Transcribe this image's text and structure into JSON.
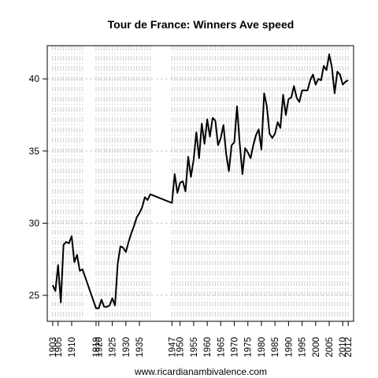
{
  "chart_data": {
    "type": "line",
    "title": "Tour de France: Winners Ave speed",
    "xlabel": "",
    "ylabel": "",
    "footer": "www.ricardianambivalence.com",
    "xlim": [
      1901,
      2014
    ],
    "ylim": [
      23.2,
      42.3
    ],
    "y_ticks": [
      25,
      30,
      35,
      40
    ],
    "x_ticks": [
      1903,
      1905,
      1910,
      1919,
      1920,
      1925,
      1930,
      1935,
      1947,
      1950,
      1955,
      1960,
      1965,
      1970,
      1975,
      1980,
      1985,
      1990,
      1995,
      2000,
      2005,
      2010,
      2012
    ],
    "grid": true,
    "legend": "none",
    "line_color": "#000000",
    "grid_color": "#cccccc",
    "x": [
      1903,
      1904,
      1905,
      1906,
      1907,
      1908,
      1909,
      1910,
      1911,
      1912,
      1913,
      1914,
      1919,
      1920,
      1921,
      1922,
      1923,
      1924,
      1925,
      1926,
      1927,
      1928,
      1929,
      1930,
      1931,
      1932,
      1933,
      1934,
      1935,
      1936,
      1937,
      1938,
      1939,
      1947,
      1948,
      1949,
      1950,
      1951,
      1952,
      1953,
      1954,
      1955,
      1956,
      1957,
      1958,
      1959,
      1960,
      1961,
      1962,
      1963,
      1964,
      1965,
      1966,
      1967,
      1968,
      1969,
      1970,
      1971,
      1972,
      1973,
      1974,
      1975,
      1976,
      1977,
      1978,
      1979,
      1980,
      1981,
      1982,
      1983,
      1984,
      1985,
      1986,
      1987,
      1988,
      1989,
      1990,
      1991,
      1992,
      1993,
      1994,
      1995,
      1996,
      1997,
      1998,
      1999,
      2000,
      2001,
      2002,
      2003,
      2004,
      2005,
      2006,
      2007,
      2008,
      2009,
      2010,
      2011,
      2012
    ],
    "y": [
      25.7,
      25.3,
      27.1,
      24.5,
      28.5,
      28.7,
      28.6,
      29.1,
      27.3,
      27.8,
      26.7,
      26.8,
      24.1,
      24.1,
      24.7,
      24.2,
      24.2,
      24.3,
      24.8,
      24.3,
      27.2,
      28.4,
      28.3,
      28.0,
      28.7,
      29.3,
      29.8,
      30.4,
      30.7,
      31.1,
      31.8,
      31.6,
      32.0,
      31.4,
      33.4,
      32.1,
      32.8,
      32.9,
      32.2,
      34.6,
      33.2,
      34.4,
      36.3,
      34.5,
      36.9,
      35.5,
      37.2,
      36.0,
      37.3,
      37.1,
      35.4,
      35.9,
      36.8,
      34.8,
      33.6,
      35.4,
      35.6,
      38.1,
      35.5,
      33.4,
      35.2,
      34.9,
      34.5,
      35.4,
      36.1,
      36.5,
      35.1,
      39.0,
      38.1,
      36.2,
      35.9,
      36.2,
      37.0,
      36.6,
      38.9,
      37.5,
      38.6,
      38.7,
      39.5,
      38.7,
      38.4,
      39.2,
      39.2,
      39.2,
      39.9,
      40.3,
      39.6,
      40.0,
      39.9,
      40.9,
      40.6,
      41.7,
      40.8,
      39.0,
      40.5,
      40.3,
      39.6,
      39.8,
      39.9
    ]
  }
}
